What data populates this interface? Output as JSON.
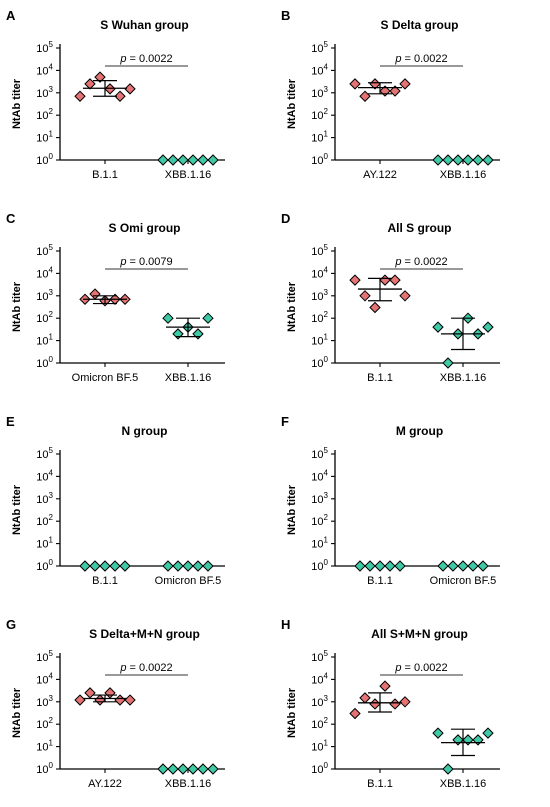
{
  "colors": {
    "red": "#e57373",
    "green": "#3ec9a7",
    "stroke": "#000000"
  },
  "chart_data": [
    {
      "type": "scatter",
      "letter": "A",
      "title": "S Wuhan group",
      "ylabel": "NtAb titer",
      "yscale": "log",
      "ylim": [
        1,
        100000
      ],
      "yticks": [
        "10",
        "10",
        "10",
        "10",
        "10",
        "10"
      ],
      "yexps": [
        "0",
        "1",
        "2",
        "3",
        "4",
        "5"
      ],
      "categories": [
        "B.1.1",
        "XBB.1.16"
      ],
      "pvalue": "= 0.0022",
      "p_italic": "p",
      "series": [
        {
          "values": [
            700,
            2500,
            5000,
            1500,
            700,
            1500
          ],
          "mean": 1600,
          "err": [
            700,
            3500
          ],
          "color": "red"
        },
        {
          "values": [
            1,
            1,
            1,
            1,
            1,
            1
          ],
          "color": "green"
        }
      ]
    },
    {
      "type": "scatter",
      "letter": "B",
      "title": "S Delta group",
      "ylabel": "NtAb titer",
      "yscale": "log",
      "ylim": [
        1,
        100000
      ],
      "yticks": [
        "10",
        "10",
        "10",
        "10",
        "10",
        "10"
      ],
      "yexps": [
        "0",
        "1",
        "2",
        "3",
        "4",
        "5"
      ],
      "categories": [
        "AY.122",
        "XBB.1.16"
      ],
      "pvalue": "= 0.0022",
      "p_italic": "p",
      "series": [
        {
          "values": [
            2500,
            700,
            2500,
            1200,
            1200,
            2500
          ],
          "mean": 1700,
          "err": [
            900,
            2800
          ],
          "color": "red"
        },
        {
          "values": [
            1,
            1,
            1,
            1,
            1,
            1
          ],
          "color": "green"
        }
      ]
    },
    {
      "type": "scatter",
      "letter": "C",
      "title": "S Omi group",
      "ylabel": "NtAb titer",
      "yscale": "log",
      "ylim": [
        1,
        100000
      ],
      "yticks": [
        "10",
        "10",
        "10",
        "10",
        "10",
        "10"
      ],
      "yexps": [
        "0",
        "1",
        "2",
        "3",
        "4",
        "5"
      ],
      "categories": [
        "Omicron BF.5",
        "XBB.1.16"
      ],
      "pvalue": "= 0.0079",
      "p_italic": "p",
      "series": [
        {
          "values": [
            700,
            1200,
            600,
            700,
            700
          ],
          "mean": 700,
          "err": [
            450,
            1000
          ],
          "color": "red"
        },
        {
          "values": [
            100,
            20,
            40,
            20,
            100
          ],
          "mean": 40,
          "err": [
            15,
            100
          ],
          "color": "green"
        }
      ]
    },
    {
      "type": "scatter",
      "letter": "D",
      "title": "All S group",
      "ylabel": "NtAb titer",
      "yscale": "log",
      "ylim": [
        1,
        100000
      ],
      "yticks": [
        "10",
        "10",
        "10",
        "10",
        "10",
        "10"
      ],
      "yexps": [
        "0",
        "1",
        "2",
        "3",
        "4",
        "5"
      ],
      "categories": [
        "B.1.1",
        "XBB.1.16"
      ],
      "pvalue": "= 0.0022",
      "p_italic": "p",
      "series": [
        {
          "values": [
            5000,
            1000,
            300,
            5000,
            5000,
            1000
          ],
          "mean": 2000,
          "err": [
            600,
            6000
          ],
          "color": "red"
        },
        {
          "values": [
            40,
            1,
            20,
            100,
            20,
            40
          ],
          "mean": 20,
          "err": [
            4,
            100
          ],
          "color": "green"
        }
      ]
    },
    {
      "type": "scatter",
      "letter": "E",
      "title": "N group",
      "ylabel": "NtAb titer",
      "yscale": "log",
      "ylim": [
        1,
        100000
      ],
      "yticks": [
        "10",
        "10",
        "10",
        "10",
        "10",
        "10"
      ],
      "yexps": [
        "0",
        "1",
        "2",
        "3",
        "4",
        "5"
      ],
      "categories": [
        "B.1.1",
        "Omicron BF.5"
      ],
      "pvalue": "",
      "p_italic": "",
      "series": [
        {
          "values": [
            1,
            1,
            1,
            1,
            1
          ],
          "color": "green"
        },
        {
          "values": [
            1,
            1,
            1,
            1,
            1
          ],
          "color": "green"
        }
      ]
    },
    {
      "type": "scatter",
      "letter": "F",
      "title": "M group",
      "ylabel": "NtAb titer",
      "yscale": "log",
      "ylim": [
        1,
        100000
      ],
      "yticks": [
        "10",
        "10",
        "10",
        "10",
        "10",
        "10"
      ],
      "yexps": [
        "0",
        "1",
        "2",
        "3",
        "4",
        "5"
      ],
      "categories": [
        "B.1.1",
        "Omicron BF.5"
      ],
      "pvalue": "",
      "p_italic": "",
      "series": [
        {
          "values": [
            1,
            1,
            1,
            1,
            1
          ],
          "color": "green"
        },
        {
          "values": [
            1,
            1,
            1,
            1,
            1
          ],
          "color": "green"
        }
      ]
    },
    {
      "type": "scatter",
      "letter": "G",
      "title": "S Delta+M+N group",
      "ylabel": "NtAb titer",
      "yscale": "log",
      "ylim": [
        1,
        100000
      ],
      "yticks": [
        "10",
        "10",
        "10",
        "10",
        "10",
        "10"
      ],
      "yexps": [
        "0",
        "1",
        "2",
        "3",
        "4",
        "5"
      ],
      "categories": [
        "AY.122",
        "XBB.1.16"
      ],
      "pvalue": "= 0.0022",
      "p_italic": "p",
      "series": [
        {
          "values": [
            1200,
            2500,
            1200,
            2500,
            1200,
            1200
          ],
          "mean": 1400,
          "err": [
            1000,
            2000
          ],
          "color": "red"
        },
        {
          "values": [
            1,
            1,
            1,
            1,
            1,
            1
          ],
          "color": "green"
        }
      ]
    },
    {
      "type": "scatter",
      "letter": "H",
      "title": "All S+M+N group",
      "ylabel": "NtAb titer",
      "yscale": "log",
      "ylim": [
        1,
        100000
      ],
      "yticks": [
        "10",
        "10",
        "10",
        "10",
        "10",
        "10"
      ],
      "yexps": [
        "0",
        "1",
        "2",
        "3",
        "4",
        "5"
      ],
      "categories": [
        "B.1.1",
        "XBB.1.16"
      ],
      "pvalue": "= 0.0022",
      "p_italic": "p",
      "series": [
        {
          "values": [
            300,
            1500,
            800,
            5000,
            800,
            1000
          ],
          "mean": 900,
          "err": [
            350,
            2500
          ],
          "color": "red"
        },
        {
          "values": [
            40,
            1,
            20,
            20,
            20,
            40
          ],
          "mean": 15,
          "err": [
            4,
            60
          ],
          "color": "green"
        }
      ]
    }
  ]
}
